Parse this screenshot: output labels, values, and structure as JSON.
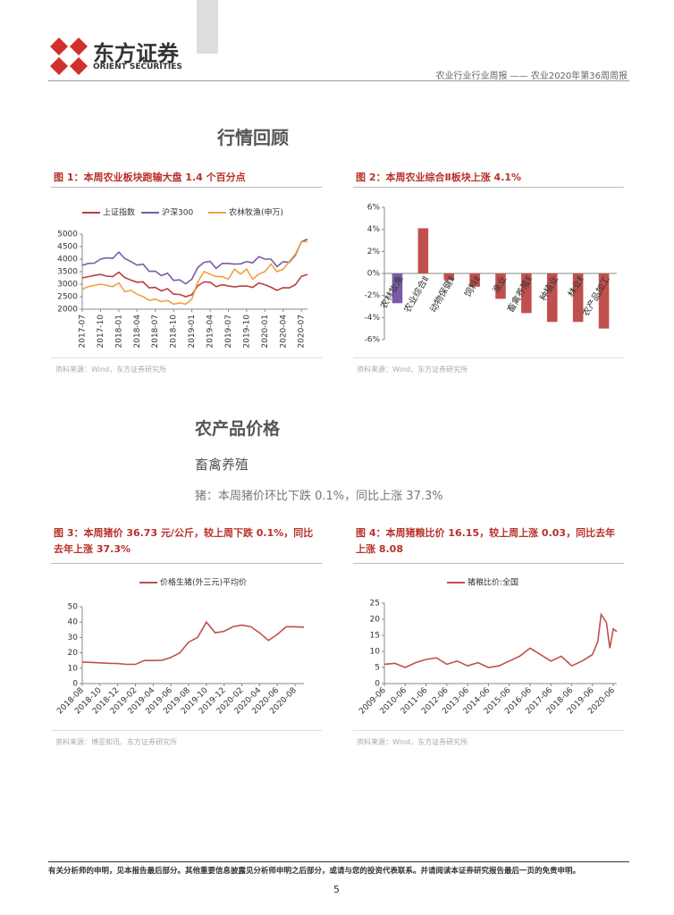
{
  "header": {
    "logo_cn": "东方证券",
    "logo_en": "ORIENT SECURITIES",
    "report": "农业行业行业周报 —— 农业2020年第36周周报"
  },
  "sections": {
    "market": "行情回顾",
    "prices": "农产品价格",
    "livestock": "畜禽养殖",
    "pig_summary": "猪：本周猪价环比下跌 0.1%，同比上涨 37.3%"
  },
  "chart_data": [
    {
      "type": "line",
      "title": "图 1：本周农业板块跑输大盘 1.4 个百分点",
      "note": "资料来源：Wind，东方证券研究所",
      "x": [
        "2017-07",
        "2017-08",
        "2017-09",
        "2017-10",
        "2017-11",
        "2017-12",
        "2018-01",
        "2018-02",
        "2018-03",
        "2018-04",
        "2018-05",
        "2018-06",
        "2018-07",
        "2018-08",
        "2018-09",
        "2018-10",
        "2018-11",
        "2018-12",
        "2019-01",
        "2019-02",
        "2019-03",
        "2019-04",
        "2019-05",
        "2019-06",
        "2019-07",
        "2019-08",
        "2019-09",
        "2019-10",
        "2019-11",
        "2019-12",
        "2020-01",
        "2020-02",
        "2020-03",
        "2020-04",
        "2020-05",
        "2020-06",
        "2020-07",
        "2020-08"
      ],
      "xticks": [
        "2017-07",
        "2017-10",
        "2018-01",
        "2018-04",
        "2018-07",
        "2018-10",
        "2019-01",
        "2019-04",
        "2019-07",
        "2019-10",
        "2020-01",
        "2020-04",
        "2020-07"
      ],
      "series": [
        {
          "name": "上证指数",
          "color": "#b8403c",
          "values": [
            3250,
            3300,
            3350,
            3390,
            3320,
            3300,
            3480,
            3260,
            3160,
            3080,
            3090,
            2850,
            2870,
            2730,
            2820,
            2600,
            2590,
            2500,
            2580,
            2940,
            3090,
            3080,
            2900,
            2980,
            2930,
            2890,
            2920,
            2930,
            2870,
            3050,
            2980,
            2880,
            2750,
            2860,
            2850,
            2980,
            3310,
            3390
          ]
        },
        {
          "name": "沪深300",
          "color": "#7a5ba8",
          "values": [
            3750,
            3830,
            3840,
            4000,
            4050,
            4030,
            4280,
            4020,
            3900,
            3760,
            3800,
            3510,
            3520,
            3340,
            3440,
            3150,
            3170,
            3010,
            3200,
            3670,
            3870,
            3910,
            3630,
            3830,
            3830,
            3800,
            3810,
            3900,
            3850,
            4100,
            4000,
            4000,
            3700,
            3900,
            3870,
            4150,
            4700,
            4800
          ]
        },
        {
          "name": "农林牧渔(申万)",
          "color": "#f0a040",
          "values": [
            2800,
            2900,
            2950,
            3000,
            2950,
            2900,
            3050,
            2700,
            2750,
            2600,
            2500,
            2350,
            2400,
            2300,
            2350,
            2200,
            2250,
            2200,
            2400,
            3100,
            3500,
            3400,
            3300,
            3300,
            3200,
            3600,
            3400,
            3600,
            3200,
            3400,
            3500,
            3800,
            3500,
            3600,
            3900,
            4200,
            4700,
            4700
          ]
        }
      ],
      "ylim": [
        2000,
        5000
      ],
      "yticks": [
        2000,
        2500,
        3000,
        3500,
        4000,
        4500,
        5000
      ]
    },
    {
      "type": "bar",
      "title": "图 2：本周农业综合Ⅱ板块上涨 4.1%",
      "note": "资料来源：Wind，东方证券研究所",
      "categories": [
        "农林牧渔",
        "农业综合Ⅱ",
        "动物保健Ⅱ",
        "饲料Ⅱ",
        "渔业",
        "畜禽养殖Ⅱ",
        "种植业",
        "林业Ⅱ",
        "农产品加工"
      ],
      "values": [
        -2.7,
        4.1,
        -0.6,
        -1.2,
        -2.3,
        -3.6,
        -4.4,
        -4.4,
        -5.0
      ],
      "colors": [
        "#7a5ba8",
        "#c0504d",
        "#c0504d",
        "#c0504d",
        "#c0504d",
        "#c0504d",
        "#c0504d",
        "#c0504d",
        "#c0504d"
      ],
      "ylim": [
        -6,
        6
      ],
      "yticks": [
        {
          "value": -6,
          "label": "-6%"
        },
        {
          "value": -4,
          "label": "-4%"
        },
        {
          "value": -2,
          "label": "-2%"
        },
        {
          "value": 0,
          "label": "0%"
        },
        {
          "value": 2,
          "label": "2%"
        },
        {
          "value": 4,
          "label": "4%"
        },
        {
          "value": 6,
          "label": "6%"
        }
      ]
    },
    {
      "type": "line",
      "title": "图 3：本周猪价 36.73 元/公斤，较上周下跌 0.1%，同比去年上涨 37.3%",
      "note": "资料来源：博亚和讯、东方证券研究所",
      "x": [
        "2018-08",
        "2018-09",
        "2018-10",
        "2018-11",
        "2018-12",
        "2019-01",
        "2019-02",
        "2019-03",
        "2019-04",
        "2019-05",
        "2019-06",
        "2019-07",
        "2019-08",
        "2019-09",
        "2019-10",
        "2019-11",
        "2019-12",
        "2020-01",
        "2020-02",
        "2020-03",
        "2020-04",
        "2020-05",
        "2020-06",
        "2020-07",
        "2020-08",
        "2020-09"
      ],
      "xticks": [
        "2018-08",
        "2018-10",
        "2018-12",
        "2019-02",
        "2019-04",
        "2019-06",
        "2019-08",
        "2019-10",
        "2019-12",
        "2020-02",
        "2020-04",
        "2020-06",
        "2020-08"
      ],
      "series": [
        {
          "name": "价格生猪(外三元)平均价",
          "color": "#c0504d",
          "values": [
            14,
            13.8,
            13.5,
            13.2,
            13,
            12.5,
            12.5,
            15,
            15,
            15.2,
            17,
            20,
            27,
            30,
            40,
            33,
            34,
            37,
            38,
            37,
            33,
            28,
            32,
            37,
            37,
            36.7
          ]
        }
      ],
      "ylim": [
        0,
        50
      ],
      "yticks": [
        0,
        10,
        20,
        30,
        40,
        50
      ]
    },
    {
      "type": "line",
      "title": "图 4：本周猪粮比价 16.15，较上周上涨 0.03，同比去年上涨 8.08",
      "note": "资料来源：Wind，东方证券研究所",
      "x": [
        "2009-06",
        "2009-12",
        "2010-06",
        "2010-12",
        "2011-06",
        "2011-12",
        "2012-06",
        "2012-12",
        "2013-06",
        "2013-12",
        "2014-06",
        "2014-12",
        "2015-06",
        "2015-12",
        "2016-06",
        "2016-12",
        "2017-06",
        "2017-12",
        "2018-06",
        "2018-12",
        "2019-06",
        "2019-09",
        "2019-11",
        "2020-02",
        "2020-04",
        "2020-06",
        "2020-08"
      ],
      "xticks": [
        "2009-06",
        "2010-06",
        "2011-06",
        "2012-06",
        "2013-06",
        "2014-06",
        "2015-06",
        "2016-06",
        "2017-06",
        "2018-06",
        "2019-06",
        "2020-06"
      ],
      "series": [
        {
          "name": "猪粮比价:全国",
          "color": "#c0504d",
          "values": [
            6,
            6.3,
            5,
            6.5,
            7.5,
            8,
            6,
            7,
            5.5,
            6.5,
            5,
            5.5,
            7,
            8.5,
            11,
            9,
            7,
            8.5,
            5.5,
            7,
            9,
            13,
            21.5,
            19,
            11,
            17,
            16.15
          ]
        }
      ],
      "ylim": [
        0,
        25
      ],
      "yticks": [
        0,
        5,
        10,
        15,
        20,
        25
      ]
    }
  ],
  "footer": {
    "disclaimer": "有关分析师的申明，见本报告最后部分。其他重要信息披露见分析师申明之后部分，或请与您的投资代表联系。并请阅读本证券研究报告最后一页的免责申明。",
    "page": "5"
  }
}
